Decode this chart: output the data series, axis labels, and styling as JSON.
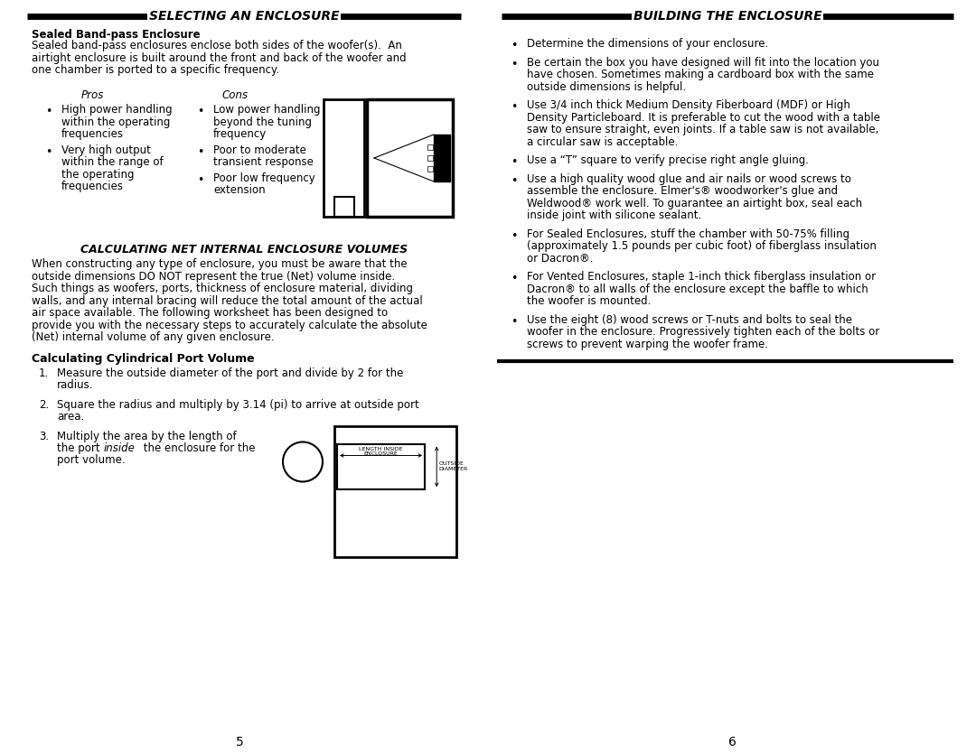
{
  "bg_color": "#ffffff",
  "left_title": "SELECTING AN ENCLOSURE",
  "right_title": "BUILDING THE ENCLOSURE",
  "sealed_bandpass_title": "Sealed Band-pass Enclosure",
  "sealed_bandpass_body": "Sealed band-pass enclosures enclose both sides of the woofer(s).  An\nairtight enclosure is built around the front and back of the woofer and\none chamber is ported to a specific frequency.",
  "pros_label": "Pros",
  "cons_label": "Cons",
  "pros_items": [
    "High power handling\nwithin the operating\nfrequencies",
    "Very high output\nwithin the range of\nthe operating\nfrequencies"
  ],
  "cons_items": [
    "Low power handling\nbeyond the tuning\nfrequency",
    "Poor to moderate\ntransient response",
    "Poor low frequency\nextension"
  ],
  "calc_title": "CALCULATING NET INTERNAL ENCLOSURE VOLUMES",
  "calc_body": "When constructing any type of enclosure, you must be aware that the outside dimensions DO NOT represent the true (Net) volume inside. Such things as woofers, ports, thickness of enclosure material, dividing walls, and any internal bracing will reduce the total amount of the actual air space available. The following worksheet has been designed to provide you with the necessary steps to accurately calculate the absolute (Net) internal volume of any given enclosure.",
  "cyl_port_title": "Calculating Cylindrical Port Volume",
  "cyl_step1": "Measure the outside diameter of the port and divide by 2 for the\nradius.",
  "cyl_step2": "Square the radius and multiply by 3.14 (pi) to arrive at outside port\narea.",
  "cyl_step3_part1": "Multiply the area by the length of",
  "cyl_step3_part2": "the port ",
  "cyl_step3_italic": "inside",
  "cyl_step3_part3": " the enclosure for the",
  "cyl_step3_part4": "port volume.",
  "building_bullets": [
    "Determine the dimensions of your enclosure.",
    "Be certain the box you have designed will fit into the location you have chosen. Sometimes making a cardboard box with the same outside dimensions is helpful.",
    "Use 3/4 inch thick Medium Density Fiberboard (MDF) or High Density Particleboard. It is preferable to cut the wood with a table saw to ensure straight, even joints. If a table saw is not available, a circular saw is acceptable.",
    "Use a “T” square to verify precise right angle gluing.",
    "Use a high quality wood glue and air nails or wood screws to assemble the enclosure. Elmer's® woodworker's glue and Weldwood® work well. To guarantee an airtight box, seal each inside joint with silicone sealant.",
    "For Sealed Enclosures, stuff the chamber with 50-75% filling (approximately 1.5 pounds per cubic foot) of fiberglass insulation or Dacron®.",
    "For Vented Enclosures, staple 1-inch thick fiberglass insulation or Dacron® to all walls of the enclosure except the baffle to which the woofer is mounted.",
    "Use the eight (8) wood screws or T-nuts and bolts to seal the woofer in the enclosure. Progressively tighten each of the bolts or screws to prevent warping the woofer frame."
  ],
  "page_left": "5",
  "page_right": "6"
}
